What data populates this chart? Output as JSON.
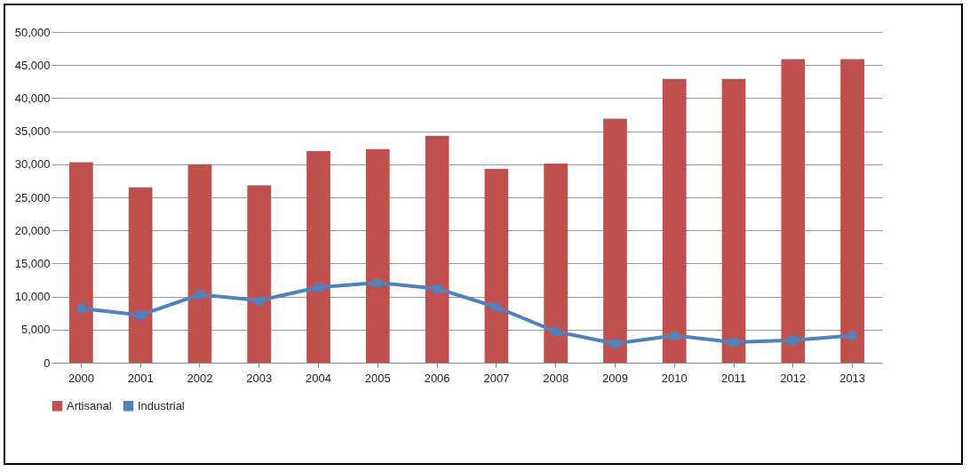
{
  "chart_data": {
    "type": "bar",
    "categories": [
      "2000",
      "2001",
      "2002",
      "2003",
      "2004",
      "2005",
      "2006",
      "2007",
      "2008",
      "2009",
      "2010",
      "2011",
      "2012",
      "2013"
    ],
    "series": [
      {
        "name": "Artisanal",
        "color": "#c0504d",
        "values": [
          30300,
          26500,
          30000,
          26800,
          32000,
          32300,
          34300,
          29300,
          30100,
          36900,
          42900,
          42900,
          45900,
          45900
        ]
      },
      {
        "name": "Industrial",
        "type": "line",
        "color": "#4f81bd",
        "marker": "square",
        "values": [
          8200,
          7200,
          10300,
          9400,
          11400,
          12100,
          11200,
          8400,
          4700,
          2900,
          4100,
          3100,
          3400,
          4100
        ]
      }
    ],
    "ylim": [
      0,
      50000
    ],
    "yticks": [
      0,
      {
        "value": 5000,
        "label": "5,000"
      },
      {
        "value": 10000,
        "label": "10,000"
      },
      {
        "value": 15000,
        "label": "15,000"
      },
      {
        "value": 20000,
        "label": "20,000"
      },
      {
        "value": 25000,
        "label": "25,000"
      },
      {
        "value": 30000,
        "label": "30,000"
      },
      {
        "value": 35000,
        "label": "35,000"
      },
      {
        "value": 40000,
        "label": "40,000"
      },
      {
        "value": 45000,
        "label": "45,000"
      },
      {
        "value": 50000,
        "label": "50,000"
      }
    ],
    "grid": "y",
    "legend": "bottom"
  }
}
